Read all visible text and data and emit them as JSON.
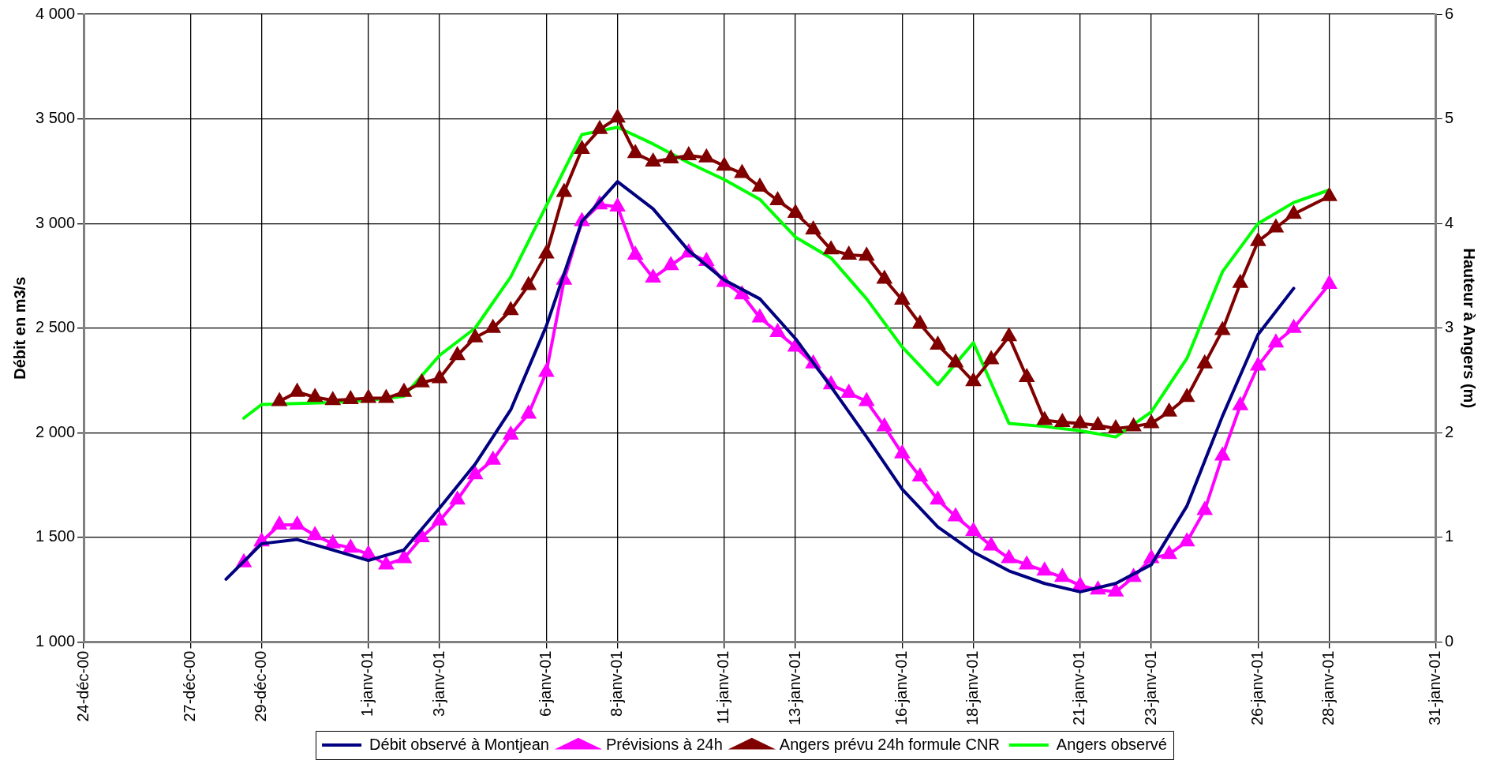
{
  "chart_data": {
    "type": "line",
    "ylabel": "Débit en m3/s",
    "y2label": "Hauteur à Angers (m)",
    "xlim": [
      "2000-12-24T00:00",
      "2001-01-31T00:00"
    ],
    "xticks": [
      {
        "value": "2000-12-24T00:00",
        "label": "24-déc-00"
      },
      {
        "value": "2000-12-27T00:00",
        "label": "27-déc-00"
      },
      {
        "value": "2000-12-29T00:00",
        "label": "29-déc-00"
      },
      {
        "value": "2001-01-01T00:00",
        "label": "1-janv-01"
      },
      {
        "value": "2001-01-03T00:00",
        "label": "3-janv-01"
      },
      {
        "value": "2001-01-06T00:00",
        "label": "6-janv-01"
      },
      {
        "value": "2001-01-08T00:00",
        "label": "8-janv-01"
      },
      {
        "value": "2001-01-11T00:00",
        "label": "11-janv-01"
      },
      {
        "value": "2001-01-13T00:00",
        "label": "13-janv-01"
      },
      {
        "value": "2001-01-16T00:00",
        "label": "16-janv-01"
      },
      {
        "value": "2001-01-18T00:00",
        "label": "18-janv-01"
      },
      {
        "value": "2001-01-21T00:00",
        "label": "21-janv-01"
      },
      {
        "value": "2001-01-23T00:00",
        "label": "23-janv-01"
      },
      {
        "value": "2001-01-26T00:00",
        "label": "26-janv-01"
      },
      {
        "value": "2001-01-28T00:00",
        "label": "28-janv-01"
      },
      {
        "value": "2001-01-31T00:00",
        "label": "31-janv-01"
      }
    ],
    "ylim": [
      1000,
      4000
    ],
    "yticks": [
      {
        "value": 1000,
        "label": "1 000"
      },
      {
        "value": 1500,
        "label": "1 500"
      },
      {
        "value": 2000,
        "label": "2 000"
      },
      {
        "value": 2500,
        "label": "2 500"
      },
      {
        "value": 3000,
        "label": "3 000"
      },
      {
        "value": 3500,
        "label": "3 500"
      },
      {
        "value": 4000,
        "label": "4 000"
      }
    ],
    "y2lim": [
      0,
      6
    ],
    "y2ticks": [
      0,
      1,
      2,
      3,
      4,
      5,
      6
    ],
    "grid": true,
    "legend": "bottom",
    "x": [
      "2000-12-28T12:00",
      "2000-12-29T00:00",
      "2000-12-29T12:00",
      "2000-12-30T00:00",
      "2000-12-30T12:00",
      "2000-12-31T00:00",
      "2000-12-31T12:00",
      "2001-01-01T00:00",
      "2001-01-01T12:00",
      "2001-01-02T00:00",
      "2001-01-02T12:00",
      "2001-01-03T00:00",
      "2001-01-03T12:00",
      "2001-01-04T00:00",
      "2001-01-04T12:00",
      "2001-01-05T00:00",
      "2001-01-05T12:00",
      "2001-01-06T00:00",
      "2001-01-06T12:00",
      "2001-01-07T00:00",
      "2001-01-07T12:00",
      "2001-01-08T00:00",
      "2001-01-08T12:00",
      "2001-01-09T00:00",
      "2001-01-09T12:00",
      "2001-01-10T00:00",
      "2001-01-10T12:00",
      "2001-01-11T00:00",
      "2001-01-11T12:00",
      "2001-01-12T00:00",
      "2001-01-12T12:00",
      "2001-01-13T00:00",
      "2001-01-13T12:00",
      "2001-01-14T00:00",
      "2001-01-14T12:00",
      "2001-01-15T00:00",
      "2001-01-15T12:00",
      "2001-01-16T00:00",
      "2001-01-16T12:00",
      "2001-01-17T00:00",
      "2001-01-17T12:00",
      "2001-01-18T00:00",
      "2001-01-18T12:00",
      "2001-01-19T00:00",
      "2001-01-19T12:00",
      "2001-01-20T00:00",
      "2001-01-20T12:00",
      "2001-01-21T00:00",
      "2001-01-21T12:00",
      "2001-01-22T00:00",
      "2001-01-22T12:00",
      "2001-01-23T00:00",
      "2001-01-23T12:00",
      "2001-01-24T00:00",
      "2001-01-24T12:00",
      "2001-01-25T00:00",
      "2001-01-25T12:00",
      "2001-01-26T00:00",
      "2001-01-26T12:00",
      "2001-01-27T00:00",
      "2001-01-28T00:00"
    ],
    "series": [
      {
        "name": "Débit observé à Montjean",
        "color": "#000080",
        "marker": "none",
        "x": [
          "2000-12-28T00:00",
          "2000-12-29T00:00",
          "2000-12-30T00:00",
          "2000-12-31T00:00",
          "2001-01-01T00:00",
          "2001-01-02T00:00",
          "2001-01-03T00:00",
          "2001-01-04T00:00",
          "2001-01-05T00:00",
          "2001-01-06T00:00",
          "2001-01-07T00:00",
          "2001-01-08T00:00",
          "2001-01-09T00:00",
          "2001-01-10T00:00",
          "2001-01-11T00:00",
          "2001-01-12T00:00",
          "2001-01-13T00:00",
          "2001-01-14T00:00",
          "2001-01-15T00:00",
          "2001-01-16T00:00",
          "2001-01-17T00:00",
          "2001-01-18T00:00",
          "2001-01-19T00:00",
          "2001-01-20T00:00",
          "2001-01-21T00:00",
          "2001-01-22T00:00",
          "2001-01-23T00:00",
          "2001-01-24T00:00",
          "2001-01-25T00:00",
          "2001-01-26T00:00",
          "2001-01-27T00:00"
        ],
        "values": [
          1300,
          1470,
          1490,
          1440,
          1390,
          1440,
          1640,
          1850,
          2110,
          2510,
          3010,
          3200,
          3070,
          2870,
          2730,
          2640,
          2450,
          2220,
          1980,
          1730,
          1550,
          1430,
          1340,
          1280,
          1240,
          1280,
          1370,
          1650,
          2080,
          2470,
          2690
        ]
      },
      {
        "name": "Prévisions à 24h",
        "color": "#ff00ff",
        "marker": "triangle",
        "values": [
          1380,
          1480,
          1560,
          1560,
          1510,
          1470,
          1450,
          1420,
          1370,
          1400,
          1500,
          1580,
          1680,
          1800,
          1870,
          1990,
          2090,
          2290,
          2730,
          3010,
          3090,
          3080,
          2850,
          2740,
          2800,
          2860,
          2820,
          2720,
          2660,
          2550,
          2480,
          2410,
          2330,
          2230,
          2190,
          2150,
          2030,
          1900,
          1790,
          1680,
          1600,
          1530,
          1460,
          1400,
          1370,
          1340,
          1310,
          1270,
          1250,
          1240,
          1310,
          1400,
          1420,
          1480,
          1630,
          1890,
          2130,
          2320,
          2430,
          2500,
          2710
        ]
      },
      {
        "name": "Angers prévu 24h formule CNR",
        "color": "#800000",
        "marker": "triangle",
        "axis": "y2",
        "values": [
          null,
          null,
          2.3,
          2.39,
          2.34,
          2.31,
          2.32,
          2.33,
          2.33,
          2.39,
          2.48,
          2.52,
          2.74,
          2.91,
          3.0,
          3.17,
          3.41,
          3.71,
          4.3,
          4.71,
          4.9,
          5.01,
          4.67,
          4.59,
          4.62,
          4.65,
          4.63,
          4.55,
          4.48,
          4.35,
          4.22,
          4.1,
          3.94,
          3.75,
          3.7,
          3.69,
          3.47,
          3.27,
          3.04,
          2.84,
          2.67,
          2.49,
          2.7,
          2.92,
          2.53,
          2.12,
          2.1,
          2.09,
          2.07,
          2.04,
          2.06,
          2.09,
          2.2,
          2.34,
          2.66,
          2.98,
          3.43,
          3.83,
          3.96,
          4.09,
          4.26
        ]
      },
      {
        "name": "Angers observé",
        "color": "#00ff00",
        "marker": "none",
        "axis": "y2",
        "x": [
          "2000-12-28T12:00",
          "2000-12-29T00:00",
          "2000-12-30T00:00",
          "2000-12-31T00:00",
          "2001-01-01T00:00",
          "2001-01-02T00:00",
          "2001-01-03T00:00",
          "2001-01-04T00:00",
          "2001-01-05T00:00",
          "2001-01-06T00:00",
          "2001-01-07T00:00",
          "2001-01-08T00:00",
          "2001-01-09T00:00",
          "2001-01-10T00:00",
          "2001-01-11T00:00",
          "2001-01-12T00:00",
          "2001-01-13T00:00",
          "2001-01-14T00:00",
          "2001-01-15T00:00",
          "2001-01-16T00:00",
          "2001-01-17T00:00",
          "2001-01-18T00:00",
          "2001-01-19T00:00",
          "2001-01-20T00:00",
          "2001-01-21T00:00",
          "2001-01-22T00:00",
          "2001-01-23T00:00",
          "2001-01-24T00:00",
          "2001-01-25T00:00",
          "2001-01-26T00:00",
          "2001-01-27T00:00",
          "2001-01-28T00:00"
        ],
        "values": [
          2.14,
          2.27,
          2.28,
          2.29,
          2.31,
          2.35,
          2.74,
          3.0,
          3.49,
          4.17,
          4.85,
          4.92,
          4.76,
          4.58,
          4.42,
          4.23,
          3.87,
          3.67,
          3.28,
          2.82,
          2.46,
          2.86,
          2.09,
          2.06,
          2.02,
          1.96,
          2.2,
          2.71,
          3.54,
          4.0,
          4.2,
          4.32
        ]
      }
    ]
  }
}
